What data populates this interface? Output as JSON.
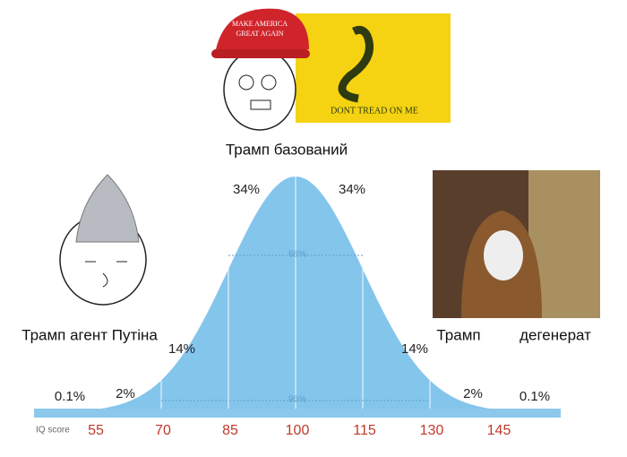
{
  "top": {
    "hat_text": [
      "MAKE AMERICA",
      "GREAT AGAIN"
    ],
    "flag_text": "DONT TREAD ON ME",
    "caption": "Трамп базований"
  },
  "left": {
    "caption": "Трамп агент Путіна"
  },
  "right": {
    "caption_left": "Трамп",
    "caption_right": "дегенерат"
  },
  "curve": {
    "segment_labels": [
      "0.1%",
      "2%",
      "14%",
      "34%",
      "34%",
      "14%",
      "2%",
      "0.1%"
    ],
    "inner_labels": [
      "68%",
      "95%"
    ],
    "axis_label": "IQ score",
    "axis_ticks": [
      "55",
      "70",
      "85",
      "100",
      "115",
      "130",
      "145"
    ]
  }
}
